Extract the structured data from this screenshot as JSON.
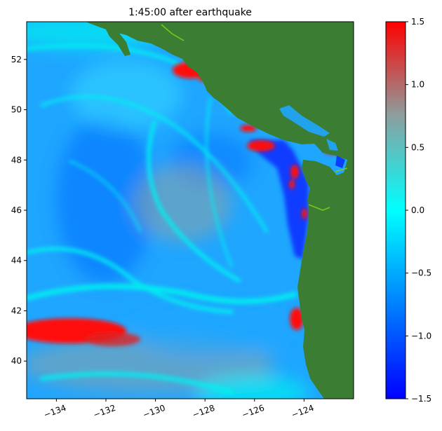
{
  "title": "1:45:00 after earthquake",
  "map": {
    "lon_range": [
      -135.2,
      -122.0
    ],
    "lat_range": [
      38.5,
      53.5
    ],
    "x_ticks": [
      {
        "value": -134,
        "label": "−134"
      },
      {
        "value": -132,
        "label": "−132"
      },
      {
        "value": -130,
        "label": "−130"
      },
      {
        "value": -128,
        "label": "−128"
      },
      {
        "value": -126,
        "label": "−126"
      },
      {
        "value": -124,
        "label": "−124"
      }
    ],
    "y_ticks": [
      {
        "value": 40,
        "label": "40"
      },
      {
        "value": 42,
        "label": "42"
      },
      {
        "value": 44,
        "label": "44"
      },
      {
        "value": 46,
        "label": "46"
      },
      {
        "value": 48,
        "label": "48"
      },
      {
        "value": 50,
        "label": "50"
      },
      {
        "value": 52,
        "label": "52"
      }
    ],
    "colors": {
      "land": "#3a7d33",
      "ocean_base": "#1fa6ff",
      "cyan": "#00f0f0",
      "deep_blue": "#0a32ff",
      "red": "#ff1010",
      "gray": "#8fa3a3",
      "shoreline_green": "#7acb1b"
    }
  },
  "colorbar": {
    "range": [
      -1.5,
      1.5
    ],
    "ticks": [
      {
        "value": 1.5,
        "label": "1.5"
      },
      {
        "value": 1.0,
        "label": "1.0"
      },
      {
        "value": 0.5,
        "label": "0.5"
      },
      {
        "value": 0.0,
        "label": "0.0"
      },
      {
        "value": -0.5,
        "label": "−0.5"
      },
      {
        "value": -1.0,
        "label": "−1.0"
      },
      {
        "value": -1.5,
        "label": "−1.5"
      }
    ],
    "stops": [
      {
        "value": -1.5,
        "color": "#0000ff"
      },
      {
        "value": -0.75,
        "color": "#0080ff"
      },
      {
        "value": 0.0,
        "color": "#00ffff"
      },
      {
        "value": 0.75,
        "color": "#8c9f9f"
      },
      {
        "value": 1.5,
        "color": "#ff0000"
      }
    ]
  }
}
